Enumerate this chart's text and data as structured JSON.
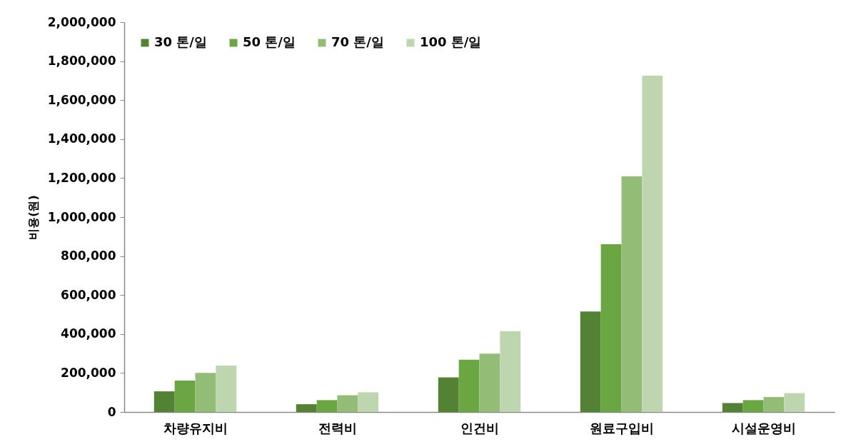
{
  "chart_data": {
    "type": "bar",
    "ylabel": "비용(원)",
    "categories": [
      "차량유지비",
      "전력비",
      "인건비",
      "원료구입비",
      "시설운영비"
    ],
    "series": [
      {
        "name": "30 톤/일",
        "color": "#548235",
        "values": [
          106000,
          40000,
          178000,
          516000,
          46000
        ]
      },
      {
        "name": "50 톤/일",
        "color": "#6aa642",
        "values": [
          161000,
          61000,
          268000,
          861000,
          61000
        ]
      },
      {
        "name": "70 톤/일",
        "color": "#93bd77",
        "values": [
          201000,
          86000,
          299000,
          1209000,
          77000
        ]
      },
      {
        "name": "100 톤/일",
        "color": "#bed6b0",
        "values": [
          238000,
          101000,
          415000,
          1725000,
          97000
        ]
      }
    ],
    "ylim": [
      0,
      2000000
    ],
    "yticks": [
      0,
      {
        "value": 200000,
        "label": "200,000"
      },
      {
        "value": 400000,
        "label": "400,000"
      },
      {
        "value": 600000,
        "label": "600,000"
      },
      {
        "value": 800000,
        "label": "800,000"
      },
      {
        "value": 1000000,
        "label": "1,000,000"
      },
      {
        "value": 1200000,
        "label": "1,200,000"
      },
      {
        "value": 1400000,
        "label": "1,400,000"
      },
      {
        "value": 1600000,
        "label": "1,600,000"
      },
      {
        "value": 1800000,
        "label": "1,800,000"
      },
      {
        "value": 2000000,
        "label": "2,000,000"
      }
    ],
    "grid": false,
    "legend": "top left"
  }
}
